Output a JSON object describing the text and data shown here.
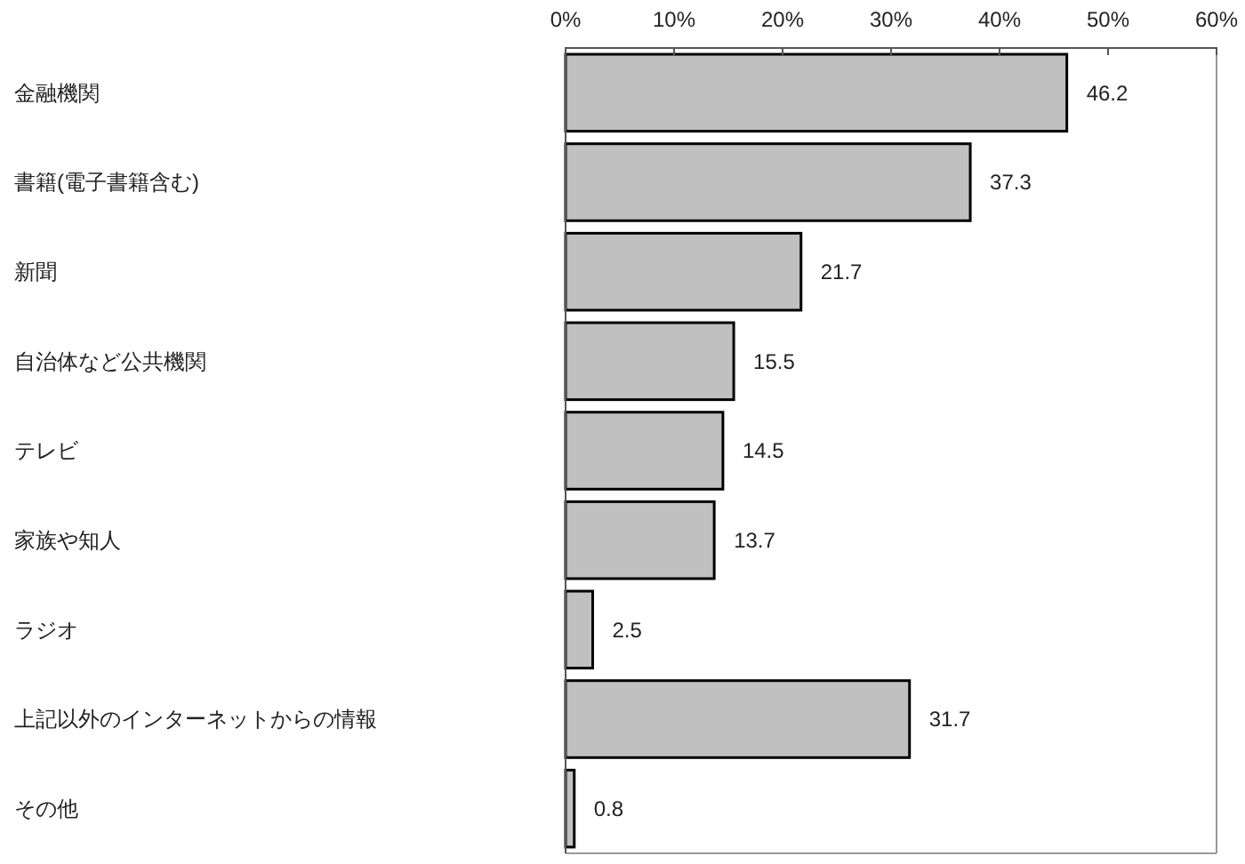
{
  "chart_data": {
    "type": "bar",
    "orientation": "horizontal",
    "categories": [
      "金融機関",
      "書籍(電子書籍含む)",
      "新聞",
      "自治体など公共機関",
      "テレビ",
      "家族や知人",
      "ラジオ",
      "上記以外のインターネットからの情報",
      "その他"
    ],
    "values": [
      46.2,
      37.3,
      21.7,
      15.5,
      14.5,
      13.7,
      2.5,
      31.7,
      0.8
    ],
    "color": "#c0c0c0",
    "data_labels": true,
    "x2lim": [
      0,
      60
    ],
    "x2ticks": [
      {
        "value": 0,
        "label": "0%"
      },
      {
        "value": 10,
        "label": "10%"
      },
      {
        "value": 20,
        "label": "20%"
      },
      {
        "value": 30,
        "label": "30%"
      },
      {
        "value": 40,
        "label": "40%"
      },
      {
        "value": 50,
        "label": "50%"
      },
      {
        "value": 60,
        "label": "60%"
      }
    ],
    "grid": false
  }
}
